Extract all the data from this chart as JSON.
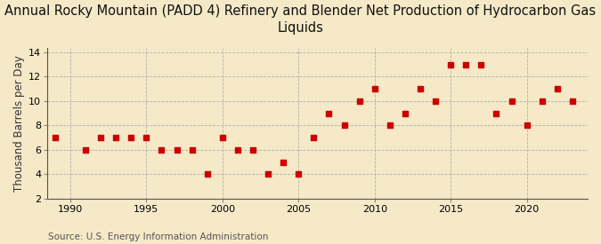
{
  "title_line1": "Annual Rocky Mountain (PADD 4) Refinery and Blender Net Production of Hydrocarbon Gas",
  "title_line2": "Liquids",
  "ylabel": "Thousand Barrels per Day",
  "source": "Source: U.S. Energy Information Administration",
  "background_color": "#f5e9c8",
  "plot_background_color": "#f5e9c8",
  "marker_color": "#cc0000",
  "years": [
    1989,
    1991,
    1992,
    1993,
    1994,
    1995,
    1996,
    1997,
    1998,
    1999,
    2000,
    2001,
    2002,
    2003,
    2004,
    2005,
    2006,
    2007,
    2008,
    2009,
    2010,
    2011,
    2012,
    2013,
    2014,
    2015,
    2016,
    2017,
    2018,
    2019,
    2020,
    2021,
    2022,
    2023
  ],
  "values": [
    7,
    6,
    7,
    7,
    7,
    7,
    6,
    6,
    6,
    4,
    7,
    6,
    6,
    4,
    5,
    4,
    7,
    9,
    8,
    10,
    11,
    8,
    9,
    11,
    10,
    13,
    13,
    13,
    9,
    10,
    8,
    10,
    11,
    10
  ],
  "xlim": [
    1988.5,
    2024
  ],
  "ylim": [
    2,
    14.4
  ],
  "yticks": [
    2,
    4,
    6,
    8,
    10,
    12,
    14
  ],
  "xticks": [
    1990,
    1995,
    2000,
    2005,
    2010,
    2015,
    2020
  ],
  "vgrid_positions": [
    1990,
    1995,
    2000,
    2005,
    2010,
    2015,
    2020
  ],
  "grid_color": "#aaaaaa",
  "title_fontsize": 10.5,
  "axis_fontsize": 8.5,
  "tick_fontsize": 8,
  "source_fontsize": 7.5
}
